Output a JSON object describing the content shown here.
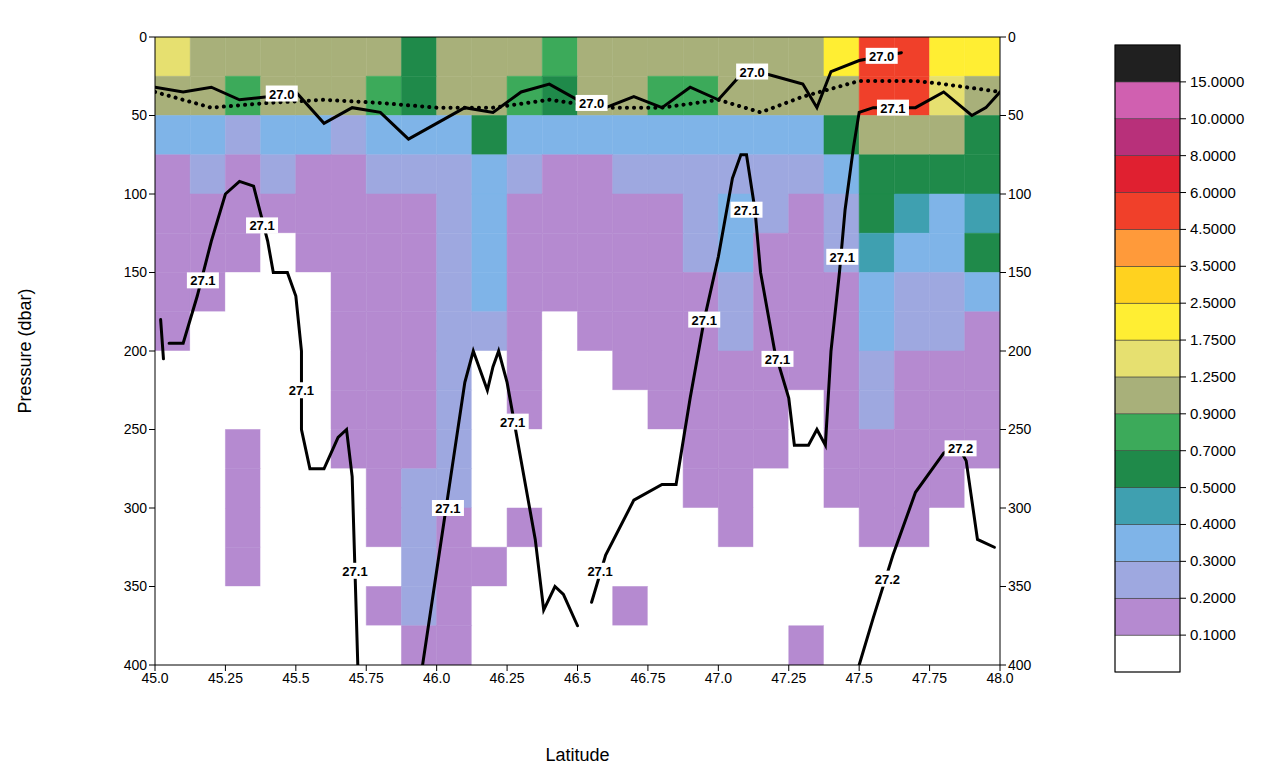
{
  "chart_data": {
    "type": "heatmap",
    "x_label": "Latitude",
    "y_label": "Pressure (dbar)",
    "xlim": [
      45,
      48
    ],
    "xticks": [
      {
        "value": 45,
        "label": "45.0"
      },
      45.25,
      45.5,
      45.75,
      {
        "value": 46,
        "label": "46.0"
      },
      46.25,
      46.5,
      46.75,
      {
        "value": 47,
        "label": "47.0"
      },
      47.25,
      47.5,
      47.75,
      {
        "value": 48,
        "label": "48.0"
      }
    ],
    "ylim": [
      0,
      400
    ],
    "yticks": [
      0,
      50,
      100,
      150,
      200,
      250,
      300,
      350,
      400
    ],
    "cells": {
      "x_edges": [
        45,
        45.125,
        45.25,
        45.375,
        45.5,
        45.625,
        45.75,
        45.875,
        46,
        46.125,
        46.25,
        46.375,
        46.5,
        46.625,
        46.75,
        46.875,
        47,
        47.125,
        47.25,
        47.375,
        47.5,
        47.625,
        47.75,
        47.875,
        48
      ],
      "y_edges": [
        0,
        25,
        50,
        75,
        100,
        125,
        150,
        175,
        200,
        225,
        250,
        275,
        300,
        325,
        350,
        375,
        400
      ],
      "values": [
        [
          1.5,
          1.0,
          1.0,
          1.0,
          1.0,
          1.0,
          1.0,
          0.6,
          1.0,
          1.0,
          1.0,
          0.8,
          1.0,
          1.0,
          1.0,
          1.0,
          1.0,
          1.0,
          1.0,
          2.0,
          5.0,
          5.0,
          2.0,
          2.0
        ],
        [
          1.0,
          1.0,
          0.8,
          1.0,
          0.9,
          1.0,
          0.8,
          0.6,
          1.0,
          1.0,
          0.8,
          0.6,
          1.0,
          0.9,
          0.8,
          0.8,
          1.0,
          1.0,
          0.9,
          1.0,
          5.0,
          5.0,
          1.5,
          1.0
        ],
        [
          0.35,
          0.3,
          0.25,
          0.3,
          0.35,
          0.25,
          0.3,
          0.3,
          0.3,
          0.6,
          0.3,
          0.3,
          0.3,
          0.3,
          0.3,
          0.3,
          0.3,
          0.3,
          0.35,
          0.6,
          1.0,
          1.0,
          0.9,
          0.6
        ],
        [
          0.15,
          0.2,
          0.15,
          0.2,
          0.15,
          0.15,
          0.2,
          0.2,
          0.25,
          0.3,
          0.2,
          0.15,
          0.15,
          0.2,
          0.2,
          0.25,
          0.25,
          0.2,
          0.25,
          0.3,
          0.6,
          0.6,
          0.6,
          0.5
        ],
        [
          0.15,
          0.15,
          0.15,
          0.15,
          0.15,
          0.15,
          0.15,
          0.15,
          0.2,
          0.3,
          0.15,
          0.15,
          0.15,
          0.15,
          0.15,
          0.2,
          0.3,
          0.2,
          0.15,
          0.2,
          0.5,
          0.4,
          0.35,
          0.45
        ],
        [
          0.15,
          0.15,
          0.12,
          0.08,
          0.15,
          0.15,
          0.15,
          0.15,
          0.2,
          0.35,
          0.15,
          0.15,
          0.15,
          0.15,
          0.15,
          0.2,
          0.3,
          0.15,
          0.15,
          0.2,
          0.4,
          0.3,
          0.3,
          0.5
        ],
        [
          0.15,
          0.12,
          0.05,
          0.05,
          0.05,
          0.15,
          0.15,
          0.15,
          0.2,
          0.3,
          0.15,
          0.15,
          0.15,
          0.15,
          0.15,
          0.15,
          0.25,
          0.15,
          0.15,
          0.15,
          0.35,
          0.25,
          0.25,
          0.3
        ],
        [
          0.12,
          0.05,
          0.05,
          0.05,
          0.05,
          0.15,
          0.15,
          0.15,
          0.2,
          0.25,
          0.15,
          0.05,
          0.15,
          0.15,
          0.15,
          0.15,
          0.2,
          0.15,
          0.15,
          0.15,
          0.3,
          0.2,
          0.2,
          0.15
        ],
        [
          0.05,
          0.05,
          0.05,
          0.05,
          0.05,
          0.15,
          0.15,
          0.15,
          0.2,
          0.05,
          0.15,
          0.05,
          0.05,
          0.15,
          0.15,
          0.15,
          0.15,
          0.15,
          0.15,
          0.15,
          0.25,
          0.15,
          0.15,
          0.15
        ],
        [
          0.05,
          0.05,
          0.05,
          0.05,
          0.05,
          0.15,
          0.15,
          0.15,
          0.2,
          0.05,
          0.15,
          0.05,
          0.05,
          0.05,
          0.15,
          0.15,
          0.15,
          0.15,
          0.05,
          0.15,
          0.2,
          0.15,
          0.15,
          0.15
        ],
        [
          0.05,
          0.05,
          0.12,
          0.05,
          0.05,
          0.12,
          0.15,
          0.15,
          0.2,
          0.05,
          0.05,
          0.05,
          0.05,
          0.05,
          0.05,
          0.15,
          0.15,
          0.12,
          0.05,
          0.15,
          0.15,
          0.15,
          0.15,
          0.12
        ],
        [
          0.05,
          0.05,
          0.12,
          0.05,
          0.05,
          0.05,
          0.15,
          0.2,
          0.2,
          0.05,
          0.05,
          0.05,
          0.05,
          0.05,
          0.05,
          0.12,
          0.15,
          0.05,
          0.05,
          0.15,
          0.15,
          0.15,
          0.12,
          0.05
        ],
        [
          0.05,
          0.05,
          0.12,
          0.05,
          0.05,
          0.05,
          0.12,
          0.2,
          0.15,
          0.05,
          0.12,
          0.05,
          0.05,
          0.05,
          0.05,
          0.05,
          0.12,
          0.05,
          0.05,
          0.05,
          0.12,
          0.12,
          0.05,
          0.05
        ],
        [
          0.05,
          0.05,
          0.12,
          0.05,
          0.05,
          0.05,
          0.05,
          0.2,
          0.15,
          0.12,
          0.05,
          0.05,
          0.05,
          0.05,
          0.05,
          0.05,
          0.05,
          0.05,
          0.05,
          0.05,
          0.05,
          0.05,
          0.05,
          0.05
        ],
        [
          0.05,
          0.05,
          0.05,
          0.05,
          0.05,
          0.05,
          0.12,
          0.2,
          0.15,
          0.05,
          0.05,
          0.05,
          0.05,
          0.12,
          0.05,
          0.05,
          0.05,
          0.05,
          0.05,
          0.05,
          0.05,
          0.05,
          0.05,
          0.05
        ],
        [
          0.05,
          0.05,
          0.05,
          0.05,
          0.05,
          0.05,
          0.05,
          0.15,
          0.12,
          0.05,
          0.05,
          0.05,
          0.05,
          0.05,
          0.05,
          0.05,
          0.05,
          0.05,
          0.12,
          0.05,
          0.05,
          0.05,
          0.05,
          0.05
        ]
      ]
    },
    "colorbar": {
      "ticks": [
        {
          "value": 0.1,
          "label": "0.1000"
        },
        {
          "value": 0.2,
          "label": "0.2000"
        },
        {
          "value": 0.3,
          "label": "0.3000"
        },
        {
          "value": 0.4,
          "label": "0.4000"
        },
        {
          "value": 0.5,
          "label": "0.5000"
        },
        {
          "value": 0.7,
          "label": "0.7000"
        },
        {
          "value": 0.9,
          "label": "0.9000"
        },
        {
          "value": 1.25,
          "label": "1.2500"
        },
        {
          "value": 1.75,
          "label": "1.7500"
        },
        {
          "value": 2.5,
          "label": "2.5000"
        },
        {
          "value": 3.5,
          "label": "3.5000"
        },
        {
          "value": 4.5,
          "label": "4.5000"
        },
        {
          "value": 6,
          "label": "6.0000"
        },
        {
          "value": 8,
          "label": "8.0000"
        },
        {
          "value": 10,
          "label": "10.0000"
        },
        {
          "value": 15,
          "label": "15.0000"
        }
      ],
      "colors": [
        "#ffffff",
        "#b58ad0",
        "#9ea8e0",
        "#7fb4e8",
        "#3fa0b0",
        "#1f8a4a",
        "#3caa5a",
        "#a8b07a",
        "#e6e070",
        "#ffee33",
        "#ffd21f",
        "#ff9a3a",
        "#f0402a",
        "#e02030",
        "#b8307a",
        "#d060b0",
        "#202020"
      ]
    },
    "series": [
      {
        "label": "27.0",
        "color": "#000000",
        "line_style": "solid",
        "points": [
          [
            45.0,
            32
          ],
          [
            45.1,
            35
          ],
          [
            45.2,
            32
          ],
          [
            45.3,
            40
          ],
          [
            45.4,
            38
          ],
          [
            45.5,
            35
          ],
          [
            45.6,
            55
          ],
          [
            45.7,
            45
          ],
          [
            45.8,
            48
          ],
          [
            45.9,
            65
          ],
          [
            46.0,
            55
          ],
          [
            46.1,
            45
          ],
          [
            46.2,
            48
          ],
          [
            46.3,
            35
          ],
          [
            46.4,
            30
          ],
          [
            46.5,
            40
          ],
          [
            46.6,
            45
          ],
          [
            46.7,
            38
          ],
          [
            46.8,
            45
          ],
          [
            46.9,
            32
          ],
          [
            47.0,
            40
          ],
          [
            47.1,
            20
          ],
          [
            47.2,
            25
          ],
          [
            47.3,
            30
          ],
          [
            47.35,
            45
          ],
          [
            47.4,
            22
          ],
          [
            47.5,
            15
          ],
          [
            47.65,
            10
          ]
        ],
        "label_points": [
          [
            45.45,
            36
          ],
          [
            46.55,
            42
          ],
          [
            47.12,
            22
          ],
          [
            47.58,
            12
          ]
        ]
      },
      {
        "color": "#000000",
        "line_style": "dotted",
        "points": [
          [
            45.0,
            35
          ],
          [
            45.2,
            45
          ],
          [
            45.4,
            42
          ],
          [
            45.6,
            40
          ],
          [
            45.8,
            42
          ],
          [
            46.0,
            45
          ],
          [
            46.2,
            45
          ],
          [
            46.4,
            40
          ],
          [
            46.6,
            45
          ],
          [
            46.8,
            45
          ],
          [
            47.0,
            40
          ],
          [
            47.15,
            48
          ],
          [
            47.3,
            38
          ],
          [
            47.5,
            28
          ],
          [
            47.7,
            28
          ],
          [
            47.8,
            30
          ],
          [
            48.0,
            35
          ]
        ]
      },
      {
        "label": "27.1",
        "color": "#000000",
        "line_style": "solid",
        "points": [
          [
            45.02,
            180
          ],
          [
            45.03,
            205
          ]
        ]
      },
      {
        "label": "27.1",
        "color": "#000000",
        "line_style": "solid",
        "points": [
          [
            45.05,
            195
          ],
          [
            45.1,
            195
          ],
          [
            45.15,
            165
          ],
          [
            45.2,
            130
          ],
          [
            45.25,
            100
          ],
          [
            45.3,
            92
          ],
          [
            45.35,
            95
          ],
          [
            45.4,
            130
          ],
          [
            45.42,
            150
          ],
          [
            45.47,
            150
          ],
          [
            45.5,
            165
          ],
          [
            45.52,
            200
          ],
          [
            45.52,
            250
          ],
          [
            45.55,
            275
          ],
          [
            45.6,
            275
          ],
          [
            45.65,
            255
          ],
          [
            45.68,
            250
          ],
          [
            45.7,
            280
          ],
          [
            45.72,
            400
          ]
        ],
        "label_points": [
          [
            45.17,
            155
          ],
          [
            45.38,
            120
          ],
          [
            45.52,
            225
          ],
          [
            45.71,
            340
          ]
        ]
      },
      {
        "label": "27.1",
        "color": "#000000",
        "line_style": "solid",
        "points": [
          [
            45.95,
            400
          ],
          [
            46.0,
            340
          ],
          [
            46.05,
            280
          ],
          [
            46.1,
            220
          ],
          [
            46.13,
            200
          ],
          [
            46.18,
            225
          ],
          [
            46.2,
            210
          ],
          [
            46.22,
            200
          ],
          [
            46.25,
            220
          ],
          [
            46.3,
            270
          ],
          [
            46.35,
            320
          ],
          [
            46.38,
            365
          ],
          [
            46.42,
            350
          ],
          [
            46.45,
            355
          ],
          [
            46.5,
            375
          ]
        ],
        "label_points": [
          [
            46.04,
            300
          ],
          [
            46.27,
            245
          ]
        ]
      },
      {
        "label": "27.1",
        "color": "#000000",
        "line_style": "solid",
        "points": [
          [
            46.55,
            360
          ],
          [
            46.6,
            330
          ],
          [
            46.7,
            295
          ],
          [
            46.8,
            285
          ],
          [
            46.85,
            285
          ],
          [
            46.9,
            230
          ],
          [
            46.95,
            180
          ],
          [
            47.0,
            140
          ],
          [
            47.05,
            90
          ],
          [
            47.08,
            75
          ],
          [
            47.1,
            75
          ],
          [
            47.13,
            110
          ],
          [
            47.15,
            150
          ],
          [
            47.2,
            200
          ],
          [
            47.25,
            230
          ],
          [
            47.27,
            260
          ],
          [
            47.32,
            260
          ],
          [
            47.35,
            250
          ],
          [
            47.38,
            260
          ],
          [
            47.4,
            200
          ],
          [
            47.43,
            150
          ],
          [
            47.45,
            110
          ],
          [
            47.48,
            70
          ],
          [
            47.5,
            48
          ],
          [
            47.55,
            45
          ],
          [
            47.7,
            45
          ],
          [
            47.8,
            35
          ],
          [
            47.9,
            50
          ],
          [
            47.95,
            45
          ],
          [
            48.0,
            35
          ]
        ],
        "label_points": [
          [
            46.58,
            340
          ],
          [
            46.95,
            180
          ],
          [
            47.1,
            110
          ],
          [
            47.21,
            205
          ],
          [
            47.44,
            140
          ],
          [
            47.62,
            45
          ]
        ]
      },
      {
        "label": "27.2",
        "color": "#000000",
        "line_style": "solid",
        "points": [
          [
            47.5,
            400
          ],
          [
            47.55,
            370
          ],
          [
            47.62,
            330
          ],
          [
            47.65,
            315
          ],
          [
            47.7,
            290
          ],
          [
            47.8,
            265
          ],
          [
            47.85,
            260
          ],
          [
            47.88,
            270
          ],
          [
            47.92,
            320
          ],
          [
            47.98,
            325
          ]
        ],
        "label_points": [
          [
            47.6,
            345
          ],
          [
            47.86,
            262
          ]
        ]
      }
    ]
  }
}
